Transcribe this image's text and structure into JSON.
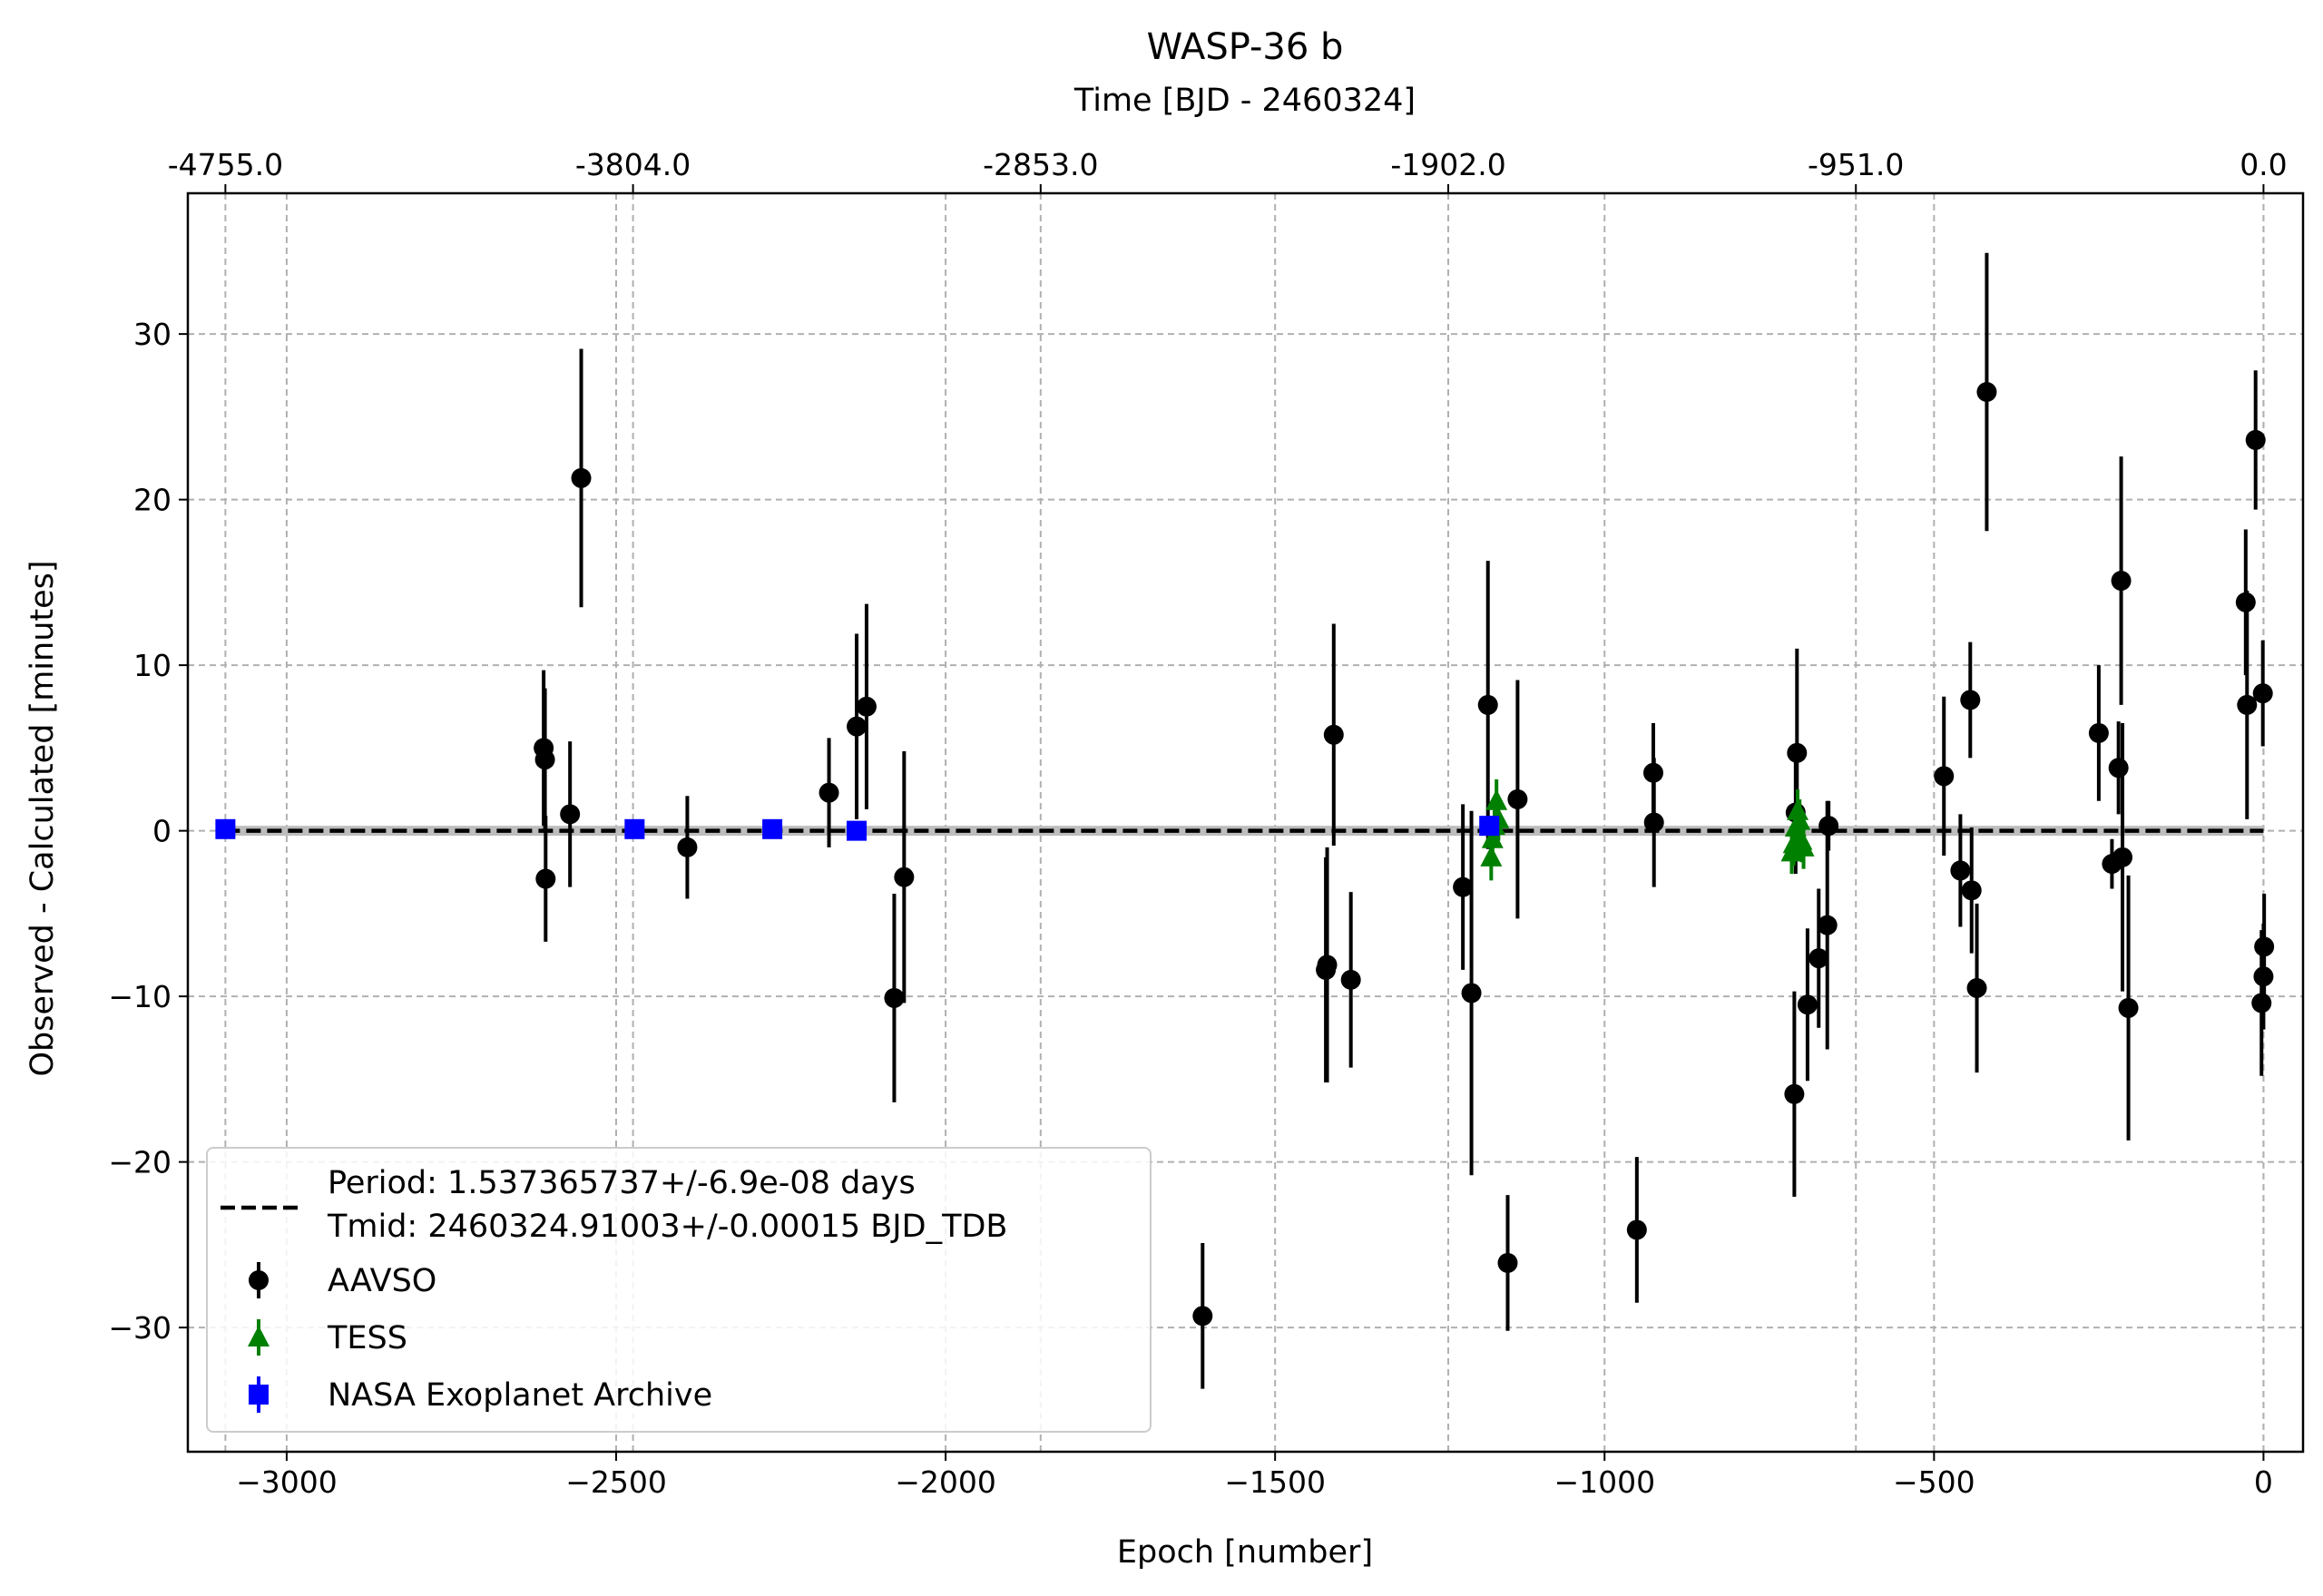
{
  "chart_data": {
    "type": "scatter",
    "title": "WASP-36 b",
    "xlabel": "Epoch [number]",
    "ylabel": "Observed - Calculated [minutes]",
    "top_xlabel": "Time [BJD - 2460324]",
    "xlim": [
      -3150,
      60
    ],
    "ylim": [
      -37.5,
      38.5
    ],
    "x_ticks": [
      -3000,
      -2500,
      -2000,
      -1500,
      -1000,
      -500,
      0
    ],
    "x_tick_labels": [
      "−3000",
      "−2500",
      "−2000",
      "−1500",
      "−1000",
      "−500",
      "0"
    ],
    "y_ticks": [
      -30,
      -20,
      -10,
      0,
      10,
      20,
      30
    ],
    "y_tick_labels": [
      "−30",
      "−20",
      "−10",
      "0",
      "10",
      "20",
      "30"
    ],
    "top_x_ticks": [
      -3093,
      -2474.4,
      -1855.8,
      -1237.2,
      -618.6,
      0
    ],
    "top_x_tick_labels": [
      "-4755.0",
      "-3804.0",
      "-2853.0",
      "-1902.0",
      "-951.0",
      "0.0"
    ],
    "grid": true,
    "legend_position": "lower-left",
    "fit": {
      "label_line1": "Period: 1.537365737+/-6.9e-08 days",
      "label_line2": "Tmid: 2460324.91003+/-0.00015 BJD_TDB",
      "x_range": [
        -3093,
        0
      ],
      "value": 0,
      "band": 0.3,
      "color": "#000000"
    },
    "series": [
      {
        "name": "AAVSO",
        "marker": "circle",
        "color": "#000000",
        "points": [
          {
            "x": -2610,
            "y": 5.0,
            "err": 4.7
          },
          {
            "x": -2608,
            "y": 4.3,
            "err": 4.3
          },
          {
            "x": -2607,
            "y": -2.9,
            "err": 3.8
          },
          {
            "x": -2570,
            "y": 1.0,
            "err": 4.4
          },
          {
            "x": -2553,
            "y": 21.3,
            "err": 7.8
          },
          {
            "x": -2392,
            "y": -1.0,
            "err": 3.1
          },
          {
            "x": -2177,
            "y": 2.3,
            "err": 3.3
          },
          {
            "x": -2135,
            "y": 6.3,
            "err": 5.6
          },
          {
            "x": -2120,
            "y": 7.5,
            "err": 6.2
          },
          {
            "x": -2078,
            "y": -10.1,
            "err": 6.3
          },
          {
            "x": -2063,
            "y": -2.8,
            "err": 7.6
          },
          {
            "x": -1610,
            "y": -29.3,
            "err": 4.4
          },
          {
            "x": -1423,
            "y": -8.4,
            "err": 6.8
          },
          {
            "x": -1421,
            "y": -8.1,
            "err": 7.1
          },
          {
            "x": -1411,
            "y": 5.8,
            "err": 6.7
          },
          {
            "x": -1385,
            "y": -9.0,
            "err": 5.3
          },
          {
            "x": -1215,
            "y": -3.4,
            "err": 5.0
          },
          {
            "x": -1202,
            "y": -9.8,
            "err": 11.0
          },
          {
            "x": -1177,
            "y": 7.6,
            "err": 8.7
          },
          {
            "x": -1147,
            "y": -26.1,
            "err": 4.1
          },
          {
            "x": -1132,
            "y": 1.9,
            "err": 7.2
          },
          {
            "x": -951,
            "y": -24.1,
            "err": 4.4
          },
          {
            "x": -926,
            "y": 3.5,
            "err": 3.0
          },
          {
            "x": -925,
            "y": 0.5,
            "err": 3.9
          },
          {
            "x": -712,
            "y": -15.9,
            "err": 6.2
          },
          {
            "x": -710,
            "y": 1.1,
            "err": 3.7
          },
          {
            "x": -708,
            "y": 4.7,
            "err": 6.3
          },
          {
            "x": -692,
            "y": -10.5,
            "err": 4.6
          },
          {
            "x": -675,
            "y": -7.7,
            "err": 4.2
          },
          {
            "x": -660,
            "y": 0.3,
            "err": 1.5
          },
          {
            "x": -662,
            "y": -5.7,
            "err": 7.5
          },
          {
            "x": -485,
            "y": 3.3,
            "err": 4.8
          },
          {
            "x": -460,
            "y": -2.4,
            "err": 3.4
          },
          {
            "x": -445,
            "y": 7.9,
            "err": 3.5
          },
          {
            "x": -443,
            "y": -3.6,
            "err": 3.8
          },
          {
            "x": -435,
            "y": -9.5,
            "err": 5.1
          },
          {
            "x": -420,
            "y": 26.5,
            "err": 8.4
          },
          {
            "x": -250,
            "y": 5.9,
            "err": 4.1
          },
          {
            "x": -230,
            "y": -2.0,
            "err": 1.5
          },
          {
            "x": -220,
            "y": 3.8,
            "err": 2.8
          },
          {
            "x": -216,
            "y": 15.1,
            "err": 7.5
          },
          {
            "x": -214,
            "y": -1.6,
            "err": 8.1
          },
          {
            "x": -205,
            "y": -10.7,
            "err": 8.0
          },
          {
            "x": -27,
            "y": 13.8,
            "err": 4.4
          },
          {
            "x": -25,
            "y": 7.6,
            "err": 6.9
          },
          {
            "x": -12,
            "y": 23.6,
            "err": 4.2
          },
          {
            "x": -3,
            "y": -10.4,
            "err": 4.4
          },
          {
            "x": -1,
            "y": 8.3,
            "err": 3.2
          },
          {
            "x": 0,
            "y": -8.8,
            "err": 3.2
          },
          {
            "x": 1,
            "y": -7.0,
            "err": 3.2
          }
        ]
      },
      {
        "name": "TESS",
        "marker": "triangle",
        "color": "#008000",
        "points": [
          {
            "x": -1172,
            "y": -1.6,
            "err": 1.4
          },
          {
            "x": -1170,
            "y": -0.5,
            "err": 1.4
          },
          {
            "x": -1167,
            "y": 0.3,
            "err": 1.3
          },
          {
            "x": -1164,
            "y": 1.8,
            "err": 1.3
          },
          {
            "x": -1161,
            "y": 0.7,
            "err": 1.3
          },
          {
            "x": -716,
            "y": -1.3,
            "err": 1.3
          },
          {
            "x": -713,
            "y": -0.8,
            "err": 1.3
          },
          {
            "x": -710,
            "y": 0.2,
            "err": 1.3
          },
          {
            "x": -707,
            "y": 1.2,
            "err": 1.3
          },
          {
            "x": -704,
            "y": 0.6,
            "err": 1.3
          },
          {
            "x": -701,
            "y": -0.6,
            "err": 1.3
          },
          {
            "x": -698,
            "y": -1.0,
            "err": 1.3
          }
        ]
      },
      {
        "name": "NASA Exoplanet Archive",
        "marker": "square",
        "color": "#0000ff",
        "points": [
          {
            "x": -3093,
            "y": 0.1,
            "err": 0.3
          },
          {
            "x": -2472,
            "y": 0.1,
            "err": 0.3
          },
          {
            "x": -2263,
            "y": 0.1,
            "err": 0.3
          },
          {
            "x": -2135,
            "y": 0.0,
            "err": 0.3
          },
          {
            "x": -1175,
            "y": 0.3,
            "err": 0.3
          }
        ]
      }
    ]
  }
}
